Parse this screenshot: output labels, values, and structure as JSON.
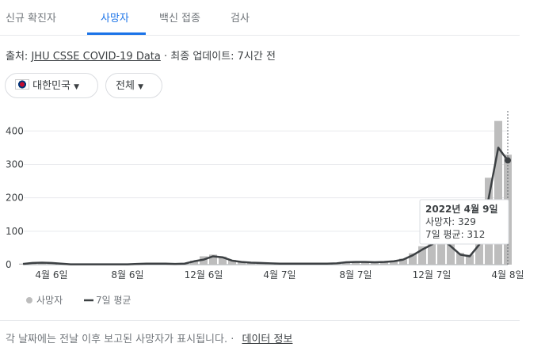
{
  "tabs": [
    "신규 확진자",
    "사망자",
    "백신 접종",
    "검사"
  ],
  "source": {
    "prefix": "출처:",
    "link": "JHU CSSE COVID-19 Data",
    "suffix": "· 최종 업데이트: 7시간 전"
  },
  "filters": [
    "대한민국",
    "전체"
  ],
  "chart_data": {
    "type": "bar_line",
    "categories": [
      null,
      null,
      null,
      "4월 6일",
      null,
      null,
      null,
      null,
      null,
      null,
      null,
      "8월 6일",
      null,
      null,
      null,
      null,
      null,
      null,
      null,
      "12월 6일",
      null,
      null,
      null,
      null,
      null,
      null,
      null,
      "4월 7일",
      null,
      null,
      null,
      null,
      null,
      null,
      null,
      "8월 7일",
      null,
      null,
      null,
      null,
      null,
      null,
      null,
      "12월 7일",
      null,
      null,
      null,
      null,
      null,
      null,
      null,
      "4월 8일"
    ],
    "series": [
      {
        "name": "사망자",
        "color": "#bdbdbd",
        "kind": "bar",
        "values": [
          3,
          6,
          7,
          5,
          3,
          1,
          1,
          1,
          1,
          2,
          1,
          1,
          2,
          3,
          4,
          3,
          2,
          4,
          12,
          25,
          30,
          24,
          14,
          9,
          7,
          6,
          5,
          4,
          3,
          3,
          4,
          3,
          3,
          5,
          8,
          9,
          9,
          8,
          9,
          12,
          18,
          34,
          55,
          70,
          95,
          62,
          35,
          30,
          75,
          260,
          430,
          329
        ]
      },
      {
        "name": "7일 평균",
        "color": "#3c4043",
        "kind": "line",
        "values": [
          2,
          5,
          6,
          5,
          3,
          1,
          1,
          1,
          1,
          1,
          1,
          1,
          2,
          3,
          3,
          3,
          2,
          3,
          10,
          15,
          25,
          22,
          12,
          8,
          6,
          5,
          4,
          3,
          3,
          3,
          3,
          3,
          3,
          4,
          7,
          8,
          8,
          7,
          8,
          10,
          15,
          28,
          45,
          60,
          80,
          55,
          30,
          25,
          60,
          200,
          350,
          312
        ]
      }
    ],
    "ylim": [
      0,
      460
    ],
    "yticks": [
      0,
      100,
      200,
      300,
      400
    ],
    "grid": true,
    "tooltip": {
      "date": "2022년 4월 9일",
      "line1": "사망자: 329",
      "line2": "7일 평균: 312"
    }
  },
  "footer": {
    "note": "각 날짜에는 전날 이후 보고된 사망자가 표시됩니다. ·",
    "link": "데이터 정보"
  }
}
